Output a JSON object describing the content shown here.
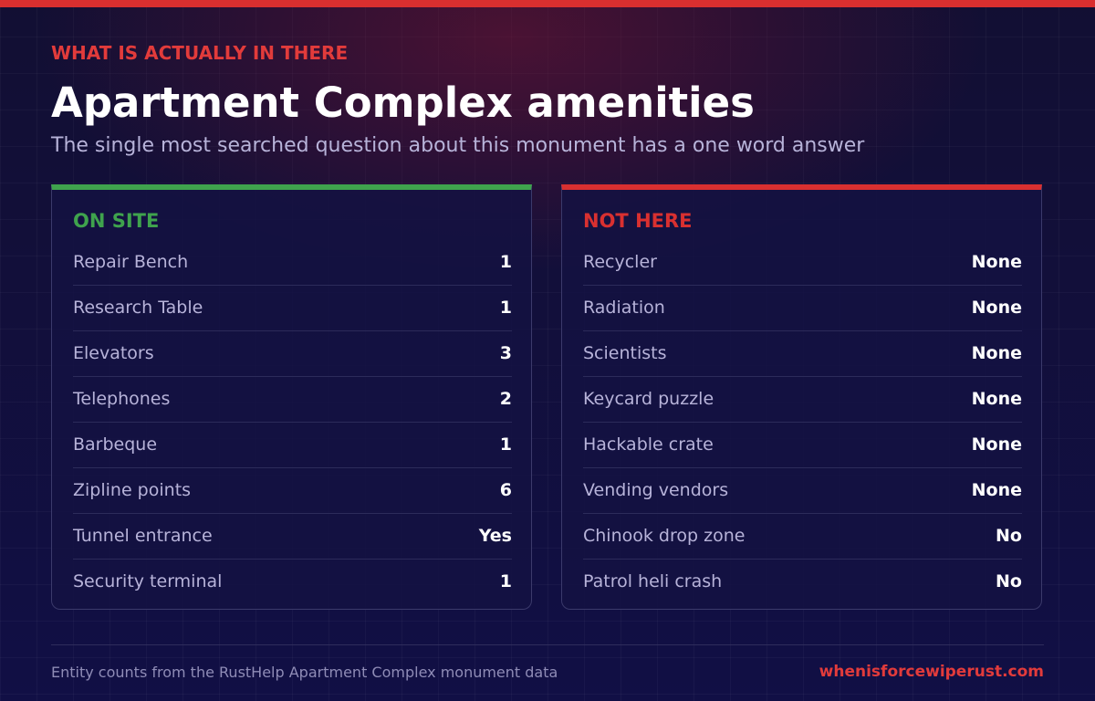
{
  "header": {
    "kicker": "WHAT IS ACTUALLY IN THERE",
    "title": "Apartment Complex amenities",
    "subtitle": "The single most searched question about this monument has a one word answer"
  },
  "panels": [
    {
      "heading": "ON SITE",
      "rows": [
        [
          "Repair Bench",
          1
        ],
        [
          "Research Table",
          1
        ],
        [
          "Elevators",
          3
        ],
        [
          "Telephones",
          2
        ],
        [
          "Barbeque",
          1
        ],
        [
          "Zipline points",
          6
        ],
        [
          "Tunnel entrance",
          "Yes"
        ],
        [
          "Security terminal",
          1
        ]
      ]
    },
    {
      "heading": "NOT HERE",
      "rows": [
        [
          "Recycler",
          "None"
        ],
        [
          "Radiation",
          "None"
        ],
        [
          "Scientists",
          "None"
        ],
        [
          "Keycard puzzle",
          "None"
        ],
        [
          "Hackable crate",
          "None"
        ],
        [
          "Vending vendors",
          "None"
        ],
        [
          "Chinook drop zone",
          "No"
        ],
        [
          "Patrol heli crash",
          "No"
        ]
      ]
    }
  ],
  "footer": {
    "note": "Entity counts from the RustHelp Apartment Complex monument data",
    "site": "whenisforcewiperust.com"
  }
}
